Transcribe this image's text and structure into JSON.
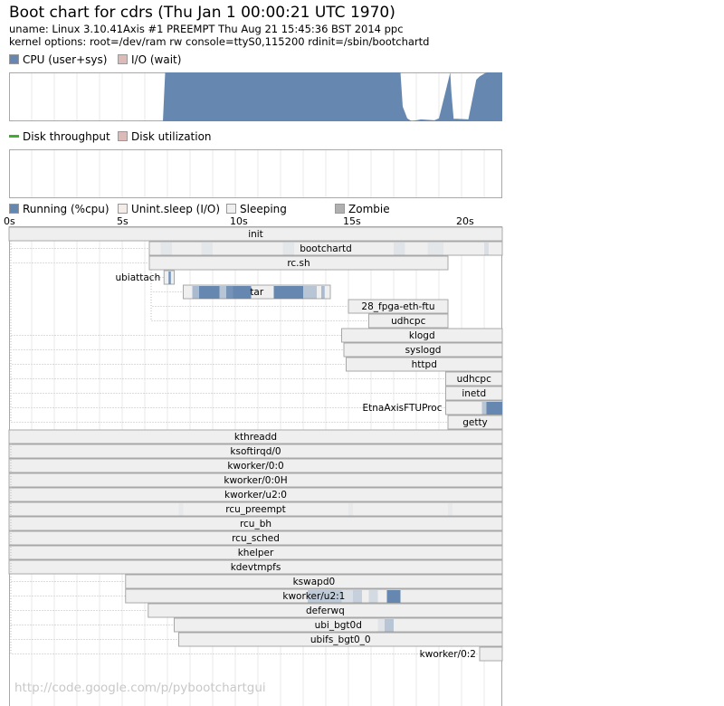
{
  "header": {
    "title": "Boot chart for cdrs (Thu Jan  1 00:00:21 UTC 1970)",
    "uname": "uname: Linux 3.10.41Axis #1 PREEMPT Thu Aug 21 15:45:36 BST 2014 ppc",
    "kernel_options": "kernel options: root=/dev/ram rw console=ttyS0,115200 rdinit=/sbin/bootchartd"
  },
  "legends": {
    "cpu": [
      {
        "label": "CPU (user+sys)",
        "color": "#6688b0"
      },
      {
        "label": "I/O (wait)",
        "color": "#dbbab8"
      }
    ],
    "disk": [
      {
        "label": "Disk throughput",
        "color": "#44aa33"
      },
      {
        "label": "Disk utilization",
        "color": "#dbbab8"
      }
    ],
    "process": [
      {
        "label": "Running (%cpu)",
        "color": "#6688b0"
      },
      {
        "label": "Unint.sleep (I/O)",
        "color": "#f4ece8"
      },
      {
        "label": "Sleeping",
        "color": "#efefef"
      },
      {
        "label": "Zombie",
        "color": "#b0b0b0"
      }
    ]
  },
  "colors": {
    "cpu": "#6688b0",
    "io": "#dbbab8",
    "sleeping": "#efefef",
    "border": "#a8a8a8",
    "grid": "#e8e8e8",
    "connector": "#bbbbbb"
  },
  "chart_data": {
    "type": "gantt",
    "x_unit": "s",
    "xlim": [
      0,
      21.8
    ],
    "xticks": [
      {
        "value": 0,
        "label": "0s"
      },
      {
        "value": 5,
        "label": "5s"
      },
      {
        "value": 10,
        "label": "10s"
      },
      {
        "value": 15,
        "label": "15s"
      },
      {
        "value": 20,
        "label": "20s"
      }
    ],
    "cpu_utilization": {
      "x": [
        0,
        6.8,
        6.9,
        17.3,
        17.4,
        17.6,
        17.8,
        18.2,
        18.8,
        19.0,
        19.3,
        19.5,
        19.55,
        19.65,
        19.8,
        20.3,
        20.5,
        20.65,
        20.8,
        21.1,
        21.8
      ],
      "y": [
        0,
        0,
        1,
        1,
        0.3,
        0.06,
        0.0,
        0.04,
        0.02,
        0.06,
        0.62,
        1,
        0.6,
        0.05,
        0.05,
        0.04,
        0.5,
        0.85,
        0.92,
        1,
        1
      ]
    },
    "processes": [
      {
        "name": "init",
        "parent": null,
        "start": 0,
        "end": 21.8,
        "cpu": []
      },
      {
        "name": "bootchartd",
        "parent": "init",
        "start": 6.2,
        "end": 21.8,
        "cpu": [
          [
            6.7,
            7.2,
            0.08
          ],
          [
            8.5,
            9.0,
            0.08
          ],
          [
            12.1,
            12.6,
            0.08
          ],
          [
            17.0,
            17.5,
            0.1
          ],
          [
            18.5,
            19.2,
            0.08
          ],
          [
            21.0,
            21.2,
            0.15
          ]
        ]
      },
      {
        "name": "rc.sh",
        "parent": "init",
        "start": 6.2,
        "end": 19.4,
        "cpu": []
      },
      {
        "name": "ubiattach",
        "parent": "rc.sh",
        "start": 6.85,
        "end": 7.3,
        "cpu": [
          [
            7.05,
            7.15,
            0.9
          ]
        ]
      },
      {
        "name": "tar",
        "parent": "rc.sh",
        "start": 7.7,
        "end": 14.2,
        "cpu": [
          [
            8.1,
            8.4,
            0.5
          ],
          [
            8.4,
            9.3,
            1.0
          ],
          [
            9.3,
            9.6,
            0.4
          ],
          [
            9.6,
            9.9,
            0.9
          ],
          [
            9.9,
            10.7,
            1.0
          ],
          [
            11.7,
            13.0,
            1.0
          ],
          [
            13.0,
            13.6,
            0.4
          ],
          [
            13.8,
            13.95,
            0.5
          ]
        ]
      },
      {
        "name": "28_fpga-eth-ftu",
        "parent": "rc.sh",
        "start": 15.0,
        "end": 19.4,
        "cpu": []
      },
      {
        "name": "udhcpc",
        "parent": "rc.sh",
        "start": 15.9,
        "end": 19.4,
        "cpu": []
      },
      {
        "name": "klogd",
        "parent": "init",
        "start": 14.7,
        "end": 21.8,
        "cpu": []
      },
      {
        "name": "syslogd",
        "parent": "init",
        "start": 14.8,
        "end": 21.8,
        "cpu": []
      },
      {
        "name": "httpd",
        "parent": "init",
        "start": 14.9,
        "end": 21.8,
        "cpu": []
      },
      {
        "name": "udhcpc",
        "parent": "init",
        "start": 19.3,
        "end": 21.8,
        "cpu": []
      },
      {
        "name": "inetd",
        "parent": "init",
        "start": 19.3,
        "end": 21.8,
        "cpu": []
      },
      {
        "name": "EtnaAxisFTUProc",
        "parent": "init",
        "start": 19.3,
        "end": 21.8,
        "cpu": [
          [
            20.9,
            21.1,
            0.4
          ],
          [
            21.1,
            21.8,
            1.0
          ]
        ]
      },
      {
        "name": "getty",
        "parent": "init",
        "start": 19.4,
        "end": 21.8,
        "cpu": []
      },
      {
        "name": "kthreadd",
        "parent": null,
        "start": 0,
        "end": 21.8,
        "cpu": []
      },
      {
        "name": "ksoftirqd/0",
        "parent": "kthreadd",
        "start": 0,
        "end": 21.8,
        "cpu": []
      },
      {
        "name": "kworker/0:0",
        "parent": "kthreadd",
        "start": 0,
        "end": 21.8,
        "cpu": []
      },
      {
        "name": "kworker/0:0H",
        "parent": "kthreadd",
        "start": 0,
        "end": 21.8,
        "cpu": []
      },
      {
        "name": "kworker/u2:0",
        "parent": "kthreadd",
        "start": 0,
        "end": 21.8,
        "cpu": []
      },
      {
        "name": "rcu_preempt",
        "parent": "kthreadd",
        "start": 0,
        "end": 21.8,
        "cpu": [
          [
            7.5,
            7.7,
            0.05
          ],
          [
            15.0,
            15.2,
            0.05
          ],
          [
            19.4,
            19.6,
            0.05
          ]
        ]
      },
      {
        "name": "rcu_bh",
        "parent": "kthreadd",
        "start": 0,
        "end": 21.8,
        "cpu": []
      },
      {
        "name": "rcu_sched",
        "parent": "kthreadd",
        "start": 0,
        "end": 21.8,
        "cpu": []
      },
      {
        "name": "khelper",
        "parent": "kthreadd",
        "start": 0,
        "end": 21.8,
        "cpu": []
      },
      {
        "name": "kdevtmpfs",
        "parent": "kthreadd",
        "start": 0,
        "end": 21.8,
        "cpu": []
      },
      {
        "name": "kswapd0",
        "parent": "kthreadd",
        "start": 5.15,
        "end": 21.8,
        "cpu": []
      },
      {
        "name": "kworker/u2:1",
        "parent": "kthreadd",
        "start": 5.15,
        "end": 21.8,
        "cpu": [
          [
            13.2,
            14.7,
            0.35
          ],
          [
            14.7,
            15.2,
            0.15
          ],
          [
            15.2,
            15.6,
            0.3
          ],
          [
            15.9,
            16.3,
            0.2
          ],
          [
            16.7,
            17.3,
            1.0
          ]
        ]
      },
      {
        "name": "deferwq",
        "parent": "kthreadd",
        "start": 6.15,
        "end": 21.8,
        "cpu": []
      },
      {
        "name": "ubi_bgt0d",
        "parent": "kthreadd",
        "start": 7.3,
        "end": 21.8,
        "cpu": [
          [
            16.3,
            16.6,
            0.1
          ],
          [
            16.6,
            17.0,
            0.4
          ]
        ]
      },
      {
        "name": "ubifs_bgt0_0",
        "parent": "kthreadd",
        "start": 7.5,
        "end": 21.8,
        "cpu": []
      },
      {
        "name": "kworker/0:2",
        "parent": "kthreadd",
        "start": 20.8,
        "end": 21.8,
        "cpu": []
      }
    ]
  },
  "footer": "http://code.google.com/p/pybootchartgui"
}
